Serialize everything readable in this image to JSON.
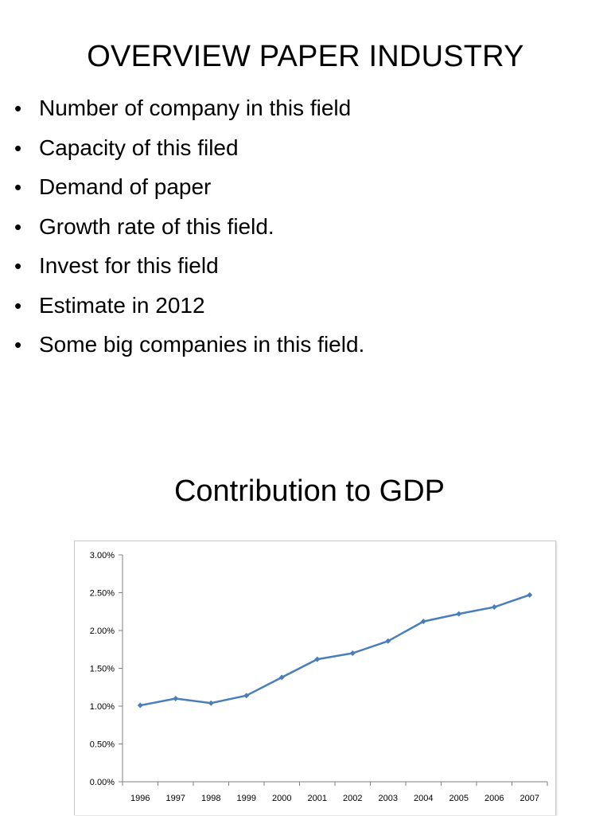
{
  "slide": {
    "title": "OVERVIEW PAPER INDUSTRY",
    "bullet_symbol": "•",
    "bullets": [
      "Number of company in this field",
      "Capacity of this filed",
      "Demand of paper",
      "Growth rate of this field.",
      "Invest for this field",
      "Estimate in 2012",
      "Some big companies in this field."
    ],
    "subtitle": "Contribution to GDP"
  },
  "chart_data": {
    "type": "line",
    "title": "",
    "xlabel": "",
    "ylabel": "",
    "categories": [
      "1996",
      "1997",
      "1998",
      "1999",
      "2000",
      "2001",
      "2002",
      "2003",
      "2004",
      "2005",
      "2006",
      "2007"
    ],
    "series": [
      {
        "name": "Contribution to GDP",
        "color": "#4a7ebb",
        "values": [
          1.01,
          1.1,
          1.04,
          1.14,
          1.38,
          1.62,
          1.7,
          1.86,
          2.12,
          2.22,
          2.31,
          2.47
        ]
      }
    ],
    "ylim": [
      0,
      3.0
    ],
    "yticks": [
      "0.00%",
      "0.50%",
      "1.00%",
      "1.50%",
      "2.00%",
      "2.50%",
      "3.00%"
    ],
    "grid": false,
    "legend": "none"
  }
}
